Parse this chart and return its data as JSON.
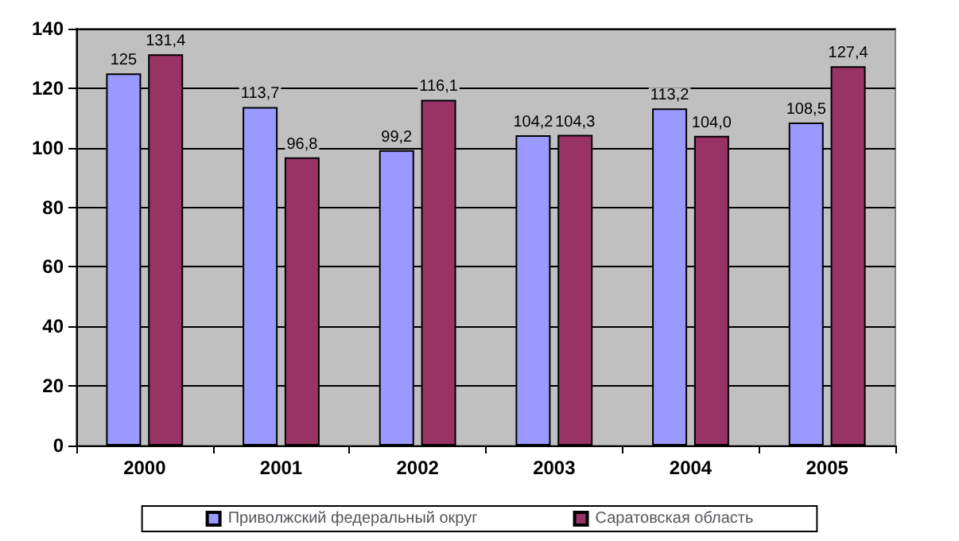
{
  "chart_data": {
    "type": "bar",
    "categories": [
      "2000",
      "2001",
      "2002",
      "2003",
      "2004",
      "2005"
    ],
    "series": [
      {
        "name": "Приволжский федеральный округ",
        "color": "#9999ff",
        "values": [
          125,
          113.7,
          99.2,
          104.2,
          113.2,
          108.5
        ],
        "value_labels": [
          "125",
          "113,7",
          "99,2",
          "104,2",
          "113,2",
          "108,5"
        ]
      },
      {
        "name": "Саратовская область",
        "color": "#993366",
        "values": [
          131.4,
          96.8,
          116.1,
          104.3,
          104.0,
          127.4
        ],
        "value_labels": [
          "131,4",
          "96,8",
          "116,1",
          "104,3",
          "104,0",
          "127,4"
        ]
      }
    ],
    "ylim": [
      0,
      140
    ],
    "yticks": [
      0,
      20,
      40,
      60,
      80,
      100,
      120,
      140
    ],
    "grid": "y",
    "legend": "bottom"
  }
}
